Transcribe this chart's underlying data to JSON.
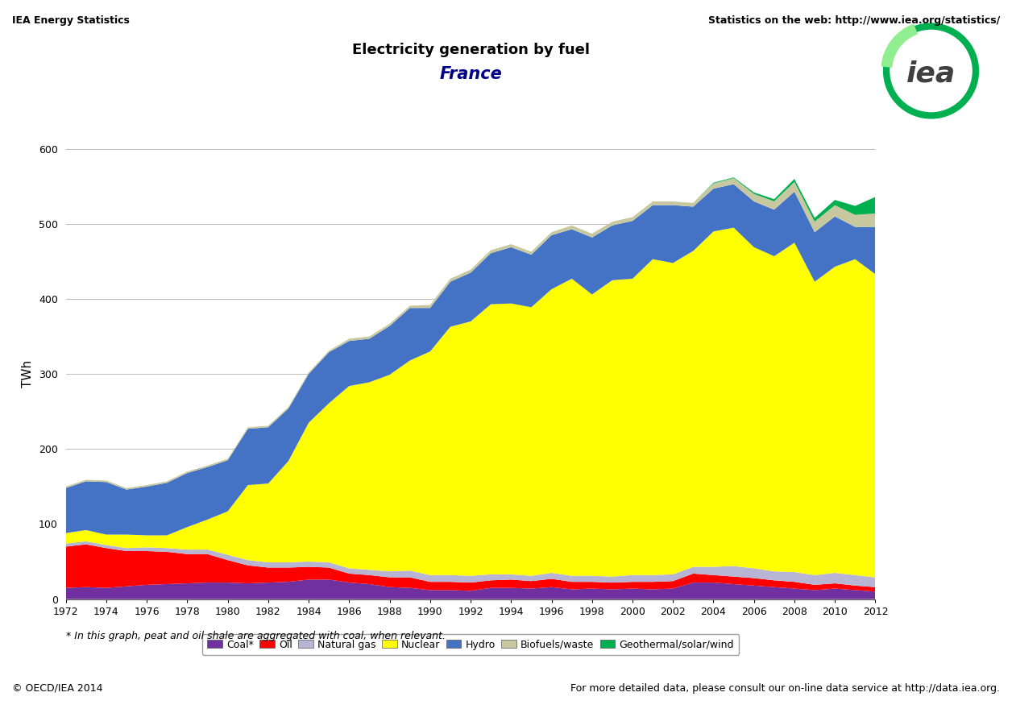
{
  "years": [
    1972,
    1973,
    1974,
    1975,
    1976,
    1977,
    1978,
    1979,
    1980,
    1981,
    1982,
    1983,
    1984,
    1985,
    1986,
    1987,
    1988,
    1989,
    1990,
    1991,
    1992,
    1993,
    1994,
    1995,
    1996,
    1997,
    1998,
    1999,
    2000,
    2001,
    2002,
    2003,
    2004,
    2005,
    2006,
    2007,
    2008,
    2009,
    2010,
    2011,
    2012
  ],
  "coal": [
    15,
    16,
    15,
    17,
    19,
    20,
    21,
    22,
    22,
    21,
    22,
    23,
    26,
    26,
    22,
    20,
    16,
    15,
    12,
    12,
    11,
    15,
    15,
    14,
    16,
    13,
    14,
    13,
    14,
    13,
    14,
    22,
    22,
    20,
    18,
    16,
    14,
    12,
    14,
    12,
    10
  ],
  "oil": [
    55,
    57,
    53,
    47,
    45,
    43,
    39,
    38,
    30,
    24,
    20,
    19,
    17,
    16,
    12,
    12,
    13,
    14,
    11,
    11,
    11,
    10,
    11,
    10,
    11,
    10,
    9,
    9,
    9,
    10,
    10,
    12,
    10,
    10,
    10,
    9,
    9,
    7,
    7,
    6,
    6
  ],
  "natural_gas": [
    4,
    4,
    4,
    4,
    5,
    5,
    6,
    6,
    7,
    7,
    7,
    7,
    7,
    7,
    7,
    7,
    8,
    9,
    9,
    9,
    9,
    8,
    7,
    7,
    8,
    8,
    8,
    8,
    9,
    9,
    9,
    9,
    11,
    14,
    13,
    12,
    13,
    13,
    14,
    14,
    13
  ],
  "nuclear": [
    14,
    15,
    14,
    18,
    16,
    17,
    30,
    40,
    58,
    100,
    105,
    135,
    185,
    212,
    243,
    250,
    262,
    280,
    298,
    331,
    339,
    360,
    361,
    358,
    378,
    396,
    375,
    395,
    395,
    421,
    415,
    421,
    447,
    451,
    428,
    420,
    439,
    391,
    408,
    421,
    404
  ],
  "hydro": [
    60,
    65,
    70,
    60,
    65,
    70,
    72,
    70,
    68,
    75,
    75,
    70,
    65,
    68,
    60,
    58,
    65,
    70,
    58,
    60,
    65,
    68,
    75,
    70,
    72,
    66,
    76,
    73,
    77,
    72,
    77,
    59,
    57,
    58,
    61,
    62,
    68,
    66,
    67,
    43,
    63
  ],
  "biofuels_waste": [
    2,
    2,
    2,
    2,
    2,
    2,
    2,
    2,
    2,
    2,
    2,
    2,
    2,
    2,
    3,
    3,
    3,
    3,
    4,
    4,
    4,
    4,
    4,
    4,
    4,
    5,
    5,
    5,
    5,
    5,
    5,
    5,
    7,
    8,
    10,
    11,
    13,
    14,
    15,
    16,
    18
  ],
  "geo_solar_wind": [
    0,
    0,
    0,
    0,
    0,
    0,
    0,
    0,
    0,
    0,
    0,
    0,
    0,
    0,
    0,
    0,
    0,
    0,
    0,
    0,
    0,
    0,
    0,
    0,
    0,
    0,
    0,
    0,
    0,
    0,
    0,
    0,
    1,
    1,
    2,
    3,
    4,
    5,
    7,
    12,
    22
  ],
  "colors": {
    "coal": "#7030A0",
    "oil": "#FF0000",
    "natural_gas": "#B8B4D4",
    "nuclear": "#FFFF00",
    "hydro": "#4472C4",
    "biofuels_waste": "#C8C8A0",
    "geo_solar_wind": "#00B050"
  },
  "title": "Electricity generation by fuel",
  "subtitle": "France",
  "ylabel": "TWh",
  "ylim": [
    0,
    600
  ],
  "yticks": [
    0,
    100,
    200,
    300,
    400,
    500,
    600
  ],
  "header_left": "IEA Energy Statistics",
  "header_right": "Statistics on the web: http://www.iea.org/statistics/",
  "footer_left": "© OECD/IEA 2014",
  "footer_right": "For more detailed data, please consult our on-line data service at http://data.iea.org.",
  "footnote": "* In this graph, peat and oil shale are aggregated with coal, when relevant.",
  "legend_labels": [
    "Coal*",
    "Oil",
    "Natural gas",
    "Nuclear",
    "Hydro",
    "Biofuels/waste",
    "Geothermal/solar/wind"
  ]
}
